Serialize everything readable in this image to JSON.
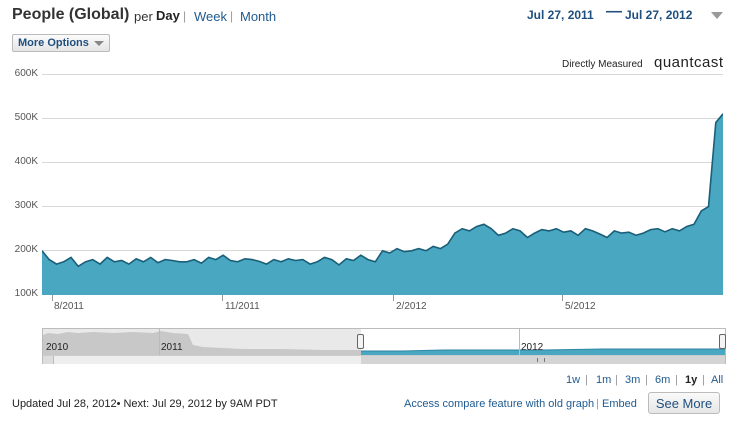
{
  "header": {
    "title": "People (Global)",
    "per_label": "per",
    "period_day": "Day",
    "period_week": "Week",
    "period_month": "Month",
    "separator": "|",
    "date_start": "Jul 27, 2011",
    "date_dash": "—",
    "date_end": "Jul 27, 2012",
    "range_dropdown_icon": "chevron-down-icon"
  },
  "options": {
    "more_options_label": "More Options"
  },
  "branding": {
    "measured_label": "Directly Measured",
    "logo_text": "quantcast"
  },
  "colors": {
    "area_fill": "#4aa7c2",
    "line": "#1a5f78",
    "link": "#1f5a8f",
    "navigator_fill": "#c8c8c8"
  },
  "chart_data": {
    "type": "area",
    "ylim": [
      100000,
      600000
    ],
    "y_ticks": [
      "100K",
      "200K",
      "300K",
      "400K",
      "500K",
      "600K"
    ],
    "x_tick_labels": [
      "8/2011",
      "11/2011",
      "2/2012",
      "5/2012"
    ],
    "x_range": [
      "2011-07-27",
      "2012-07-27"
    ],
    "grid": true,
    "series": [
      {
        "values": [
          200000,
          180000,
          170000,
          175000,
          185000,
          165000,
          175000,
          180000,
          170000,
          185000,
          175000,
          178000,
          170000,
          182000,
          175000,
          185000,
          173000,
          180000,
          178000,
          175000,
          175000,
          180000,
          172000,
          185000,
          180000,
          190000,
          178000,
          175000,
          182000,
          180000,
          176000,
          170000,
          180000,
          175000,
          182000,
          178000,
          180000,
          170000,
          175000,
          185000,
          180000,
          168000,
          182000,
          178000,
          190000,
          180000,
          175000,
          200000,
          195000,
          205000,
          198000,
          200000,
          205000,
          200000,
          210000,
          205000,
          215000,
          240000,
          250000,
          245000,
          255000,
          260000,
          250000,
          235000,
          240000,
          250000,
          245000,
          230000,
          240000,
          248000,
          245000,
          250000,
          242000,
          245000,
          235000,
          250000,
          245000,
          238000,
          230000,
          245000,
          240000,
          242000,
          235000,
          240000,
          248000,
          250000,
          243000,
          250000,
          245000,
          255000,
          260000,
          290000,
          300000,
          490000,
          510000
        ]
      }
    ]
  },
  "navigator": {
    "year_labels": [
      "2010",
      "2011",
      "2012"
    ]
  },
  "zoom": {
    "options": [
      "1w",
      "1m",
      "3m",
      "6m",
      "1y",
      "All"
    ],
    "selected": "1y",
    "separator": "|"
  },
  "footer": {
    "updated_text": "Updated Jul 28, 2012• Next: Jul 29, 2012 by 9AM PDT",
    "compare_link": "Access compare feature with old graph",
    "link_separator": "|",
    "embed_link": "Embed",
    "see_more_label": "See More"
  }
}
